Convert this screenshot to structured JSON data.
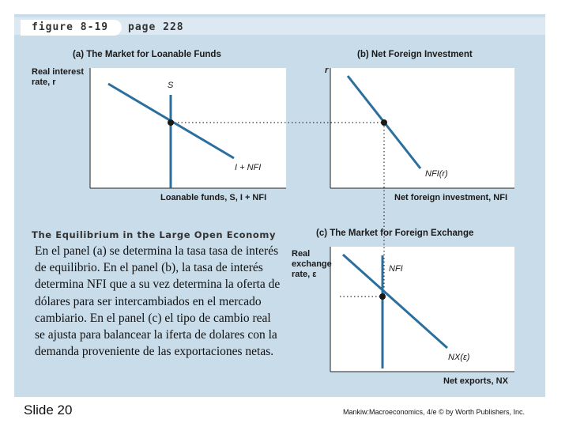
{
  "header": {
    "figure": "figure 8-19",
    "page": "page 228"
  },
  "panels": {
    "a": {
      "title": "(a) The Market for Loanable Funds",
      "y_label": "Real interest rate, r",
      "x_label": "Loanable funds, S, I + NFI",
      "curve_s": "S",
      "curve_d": "I + NFI"
    },
    "b": {
      "title": "(b) Net Foreign Investment",
      "y_label": "r",
      "x_label": "Net foreign investment, NFI",
      "curve": "NFI(r)"
    },
    "c": {
      "title": "(c) The Market for Foreign Exchange",
      "y_label": "Real exchange rate, ε",
      "x_label": "Net exports, NX",
      "curve_supply": "NFI",
      "curve_demand": "NX(ε)"
    }
  },
  "caption": "The Equilibrium in the Large Open Economy",
  "body_text": "En el panel (a) se determina la tasa tasa de interés de equilibrio. En el panel (b), la tasa de interés determina NFI que a su vez determina la oferta de dólares para ser intercambiados en el mercado cambiario. En el panel (c) el tipo de cambio real se ajusta para balancear la iferta de dolares con la demanda proveniente de las exportaciones netas.",
  "footer": {
    "slide": "Slide 20",
    "credit": "Mankiw:Macroeconomics, 4/e © by Worth Publishers, Inc."
  },
  "colors": {
    "background": "#c9dcea",
    "curve": "#2a6f9e",
    "text": "#1a1a1a"
  }
}
